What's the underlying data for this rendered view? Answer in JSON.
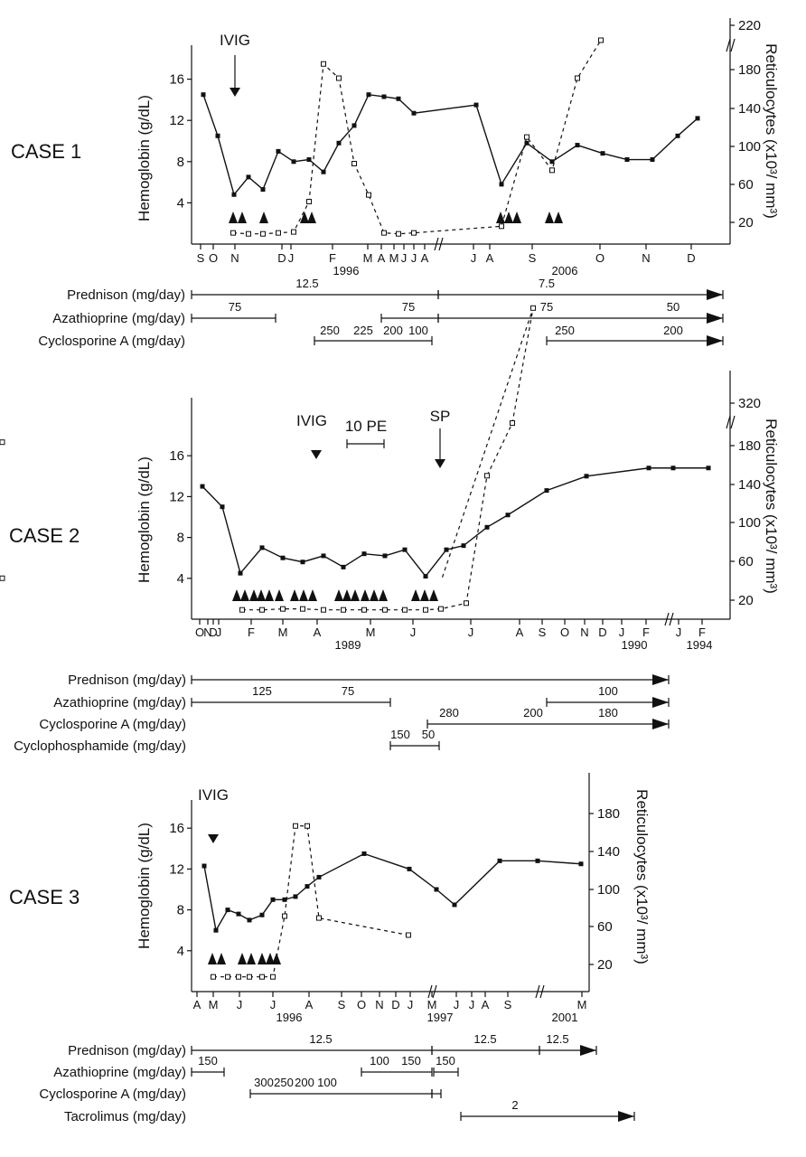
{
  "chart_data": [
    {
      "type": "line",
      "case_label": "CASE 1",
      "ylabel": "Hemoglobin (g/dL)",
      "y2label": "Reticulocytes (x10³/ mm³)",
      "yticks": [
        "4",
        "8",
        "12",
        "16"
      ],
      "y2ticks": [
        "20",
        "60",
        "100",
        "140",
        "180",
        "220"
      ],
      "month_labels": [
        "S",
        "O",
        "N",
        "D",
        "J",
        "F",
        "M",
        "A",
        "M",
        "J",
        "J",
        "A",
        "J",
        "A",
        "S",
        "O",
        "N",
        "D"
      ],
      "year_labels": [
        "1996",
        "2006"
      ],
      "events": [
        {
          "label": "IVIG",
          "kind": "arrow"
        }
      ],
      "hemoglobin": [
        14.5,
        10.5,
        4.8,
        6.5,
        5.3,
        9,
        8,
        8.2,
        7,
        9.8,
        11.5,
        14.5,
        14.3,
        14.1,
        12.7,
        13.5,
        5.8,
        9.8,
        8,
        9.6,
        8.8,
        8.2,
        8.2,
        10.5,
        12.2
      ],
      "reticulocytes": [
        7,
        6,
        6,
        7,
        8,
        40,
        185,
        170,
        80,
        47,
        7,
        6,
        7,
        14,
        108,
        73,
        170,
        210
      ],
      "transfusions": [
        [
          2,
          1,
          2
        ],
        [
          3,
          2
        ]
      ],
      "drugs": [
        {
          "name": "Prednison (mg/day)",
          "doses": [
            "12.5",
            "7.5"
          ]
        },
        {
          "name": "Azathioprine (mg/day)",
          "doses": [
            "75",
            "75",
            "75",
            "50"
          ]
        },
        {
          "name": "Cyclosporine A (mg/day)",
          "doses": [
            "250",
            "225",
            "200",
            "100",
            "250",
            "200"
          ]
        }
      ]
    },
    {
      "type": "line",
      "case_label": "CASE 2",
      "ylabel": "Hemoglobin (g/dL)",
      "y2label": "Reticulocytes (x10³/ mm³)",
      "yticks": [
        "4",
        "8",
        "12",
        "16"
      ],
      "y2ticks": [
        "20",
        "60",
        "100",
        "140",
        "180",
        "320"
      ],
      "month_labels": [
        "O",
        "N",
        "D",
        "J",
        "F",
        "M",
        "A",
        "M",
        "J",
        "J",
        "A",
        "S",
        "O",
        "N",
        "D",
        "J",
        "F",
        "J",
        "F"
      ],
      "year_labels": [
        "1989",
        "1990",
        "1994"
      ],
      "events": [
        {
          "label": "IVIG",
          "kind": "triangle"
        },
        {
          "label": "10 PE",
          "kind": "bar"
        },
        {
          "label": "SP",
          "kind": "arrow"
        }
      ],
      "hemoglobin": [
        13,
        11,
        4.5,
        7,
        6,
        5.6,
        6.2,
        5.1,
        6.4,
        6.2,
        6.8,
        4.2,
        6.8,
        7.2,
        9,
        10.2,
        12.6,
        14,
        14.8,
        14.8,
        14.8
      ],
      "reticulocytes": [
        5,
        5,
        6,
        6,
        5,
        5,
        5,
        5,
        5,
        5,
        6,
        12,
        145,
        200,
        320,
        180,
        38
      ],
      "transfusions": [
        [
          3,
          3
        ],
        [
          3,
          3,
          3
        ],
        [
          3
        ]
      ],
      "drugs": [
        {
          "name": "Prednison (mg/day)",
          "doses": []
        },
        {
          "name": "Azathioprine (mg/day)",
          "doses": [
            "125",
            "75",
            "100"
          ]
        },
        {
          "name": "Cyclosporine A (mg/day)",
          "doses": [
            "280",
            "200",
            "180"
          ]
        },
        {
          "name": "Cyclophosphamide (mg/day)",
          "doses": [
            "150",
            "50"
          ]
        }
      ]
    },
    {
      "type": "line",
      "case_label": "CASE 3",
      "ylabel": "Hemoglobin (g/dL)",
      "y2label": "Reticulocytes (x10³/ mm³)",
      "yticks": [
        "4",
        "8",
        "12",
        "16"
      ],
      "y2ticks": [
        "20",
        "60",
        "100",
        "140",
        "180"
      ],
      "month_labels": [
        "A",
        "M",
        "J",
        "J",
        "A",
        "S",
        "O",
        "N",
        "D",
        "J",
        "M",
        "J",
        "J",
        "A",
        "S",
        "M"
      ],
      "year_labels": [
        "1996",
        "1997",
        "2001"
      ],
      "events": [
        {
          "label": "IVIG",
          "kind": "triangle"
        }
      ],
      "hemoglobin": [
        12.3,
        6,
        8,
        7.6,
        7,
        7.5,
        9,
        9,
        9.3,
        10.3,
        11.2,
        13.5,
        12,
        10,
        8.5,
        12.8,
        12.8,
        12.5
      ],
      "reticulocytes": [
        6,
        6,
        6,
        6,
        6,
        6,
        70,
        165,
        165,
        68,
        50
      ],
      "transfusions": [
        [
          3
        ],
        [
          3,
          3
        ]
      ],
      "drugs": [
        {
          "name": "Prednison (mg/day)",
          "doses": [
            "12.5",
            "12.5",
            "12.5"
          ]
        },
        {
          "name": "Azathioprine (mg/day)",
          "doses": [
            "150",
            "100",
            "150",
            "150"
          ]
        },
        {
          "name": "Cyclosporine A (mg/day)",
          "doses": [
            "300",
            "250",
            "200",
            "100"
          ]
        },
        {
          "name": "Tacrolimus (mg/day)",
          "doses": [
            "2"
          ]
        }
      ]
    }
  ]
}
